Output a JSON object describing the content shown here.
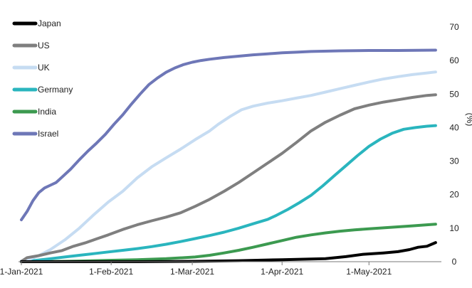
{
  "chart_data": {
    "type": "line",
    "title": "",
    "xlabel": "",
    "ylabel": "(%)",
    "ylim": [
      0,
      70
    ],
    "y_axis_side": "right",
    "y_ticks": [
      0,
      10,
      20,
      30,
      40,
      50,
      60,
      70
    ],
    "x_ticks": [
      {
        "label": "1-Jan-2021",
        "day": 0
      },
      {
        "label": "1-Feb-2021",
        "day": 31
      },
      {
        "label": "1-Mar-2021",
        "day": 59
      },
      {
        "label": "1-Apr-2021",
        "day": 90
      },
      {
        "label": "1-May-2021",
        "day": 120
      }
    ],
    "x_range_days": [
      0,
      145
    ],
    "legend_position": "top-left",
    "grid": false,
    "series": [
      {
        "name": "Japan",
        "color": "#000000",
        "points": [
          [
            0,
            0
          ],
          [
            20,
            0
          ],
          [
            40,
            0
          ],
          [
            60,
            0.1
          ],
          [
            75,
            0.3
          ],
          [
            90,
            0.6
          ],
          [
            105,
            0.9
          ],
          [
            112,
            1.5
          ],
          [
            118,
            2.2
          ],
          [
            125,
            2.6
          ],
          [
            130,
            3.0
          ],
          [
            134,
            3.6
          ],
          [
            137,
            4.3
          ],
          [
            140,
            4.6
          ],
          [
            143,
            5.7
          ]
        ]
      },
      {
        "name": "US",
        "color": "#7f7f7f",
        "points": [
          [
            0,
            0.1
          ],
          [
            2,
            1.2
          ],
          [
            6,
            1.8
          ],
          [
            10,
            2.6
          ],
          [
            14,
            3.3
          ],
          [
            18,
            4.6
          ],
          [
            22,
            5.6
          ],
          [
            26,
            6.8
          ],
          [
            30,
            8.0
          ],
          [
            35,
            9.6
          ],
          [
            40,
            11.0
          ],
          [
            45,
            12.2
          ],
          [
            50,
            13.3
          ],
          [
            55,
            14.6
          ],
          [
            60,
            16.5
          ],
          [
            65,
            18.6
          ],
          [
            70,
            21.0
          ],
          [
            75,
            23.6
          ],
          [
            80,
            26.5
          ],
          [
            85,
            29.4
          ],
          [
            90,
            32.3
          ],
          [
            95,
            35.6
          ],
          [
            100,
            39.0
          ],
          [
            105,
            41.6
          ],
          [
            110,
            43.7
          ],
          [
            115,
            45.6
          ],
          [
            120,
            46.7
          ],
          [
            125,
            47.6
          ],
          [
            130,
            48.3
          ],
          [
            135,
            49.0
          ],
          [
            140,
            49.6
          ],
          [
            143,
            49.8
          ]
        ]
      },
      {
        "name": "UK",
        "color": "#c6dcf2",
        "points": [
          [
            0,
            0.2
          ],
          [
            3,
            0.8
          ],
          [
            6,
            1.8
          ],
          [
            10,
            3.6
          ],
          [
            15,
            6.5
          ],
          [
            20,
            10.0
          ],
          [
            25,
            14.0
          ],
          [
            30,
            17.8
          ],
          [
            35,
            21.0
          ],
          [
            40,
            25.0
          ],
          [
            45,
            28.3
          ],
          [
            50,
            31.0
          ],
          [
            55,
            33.6
          ],
          [
            60,
            36.4
          ],
          [
            65,
            39.0
          ],
          [
            68,
            41.0
          ],
          [
            72,
            43.3
          ],
          [
            76,
            45.3
          ],
          [
            80,
            46.4
          ],
          [
            85,
            47.3
          ],
          [
            90,
            48.0
          ],
          [
            95,
            48.8
          ],
          [
            100,
            49.6
          ],
          [
            105,
            50.6
          ],
          [
            110,
            51.6
          ],
          [
            115,
            52.6
          ],
          [
            120,
            53.6
          ],
          [
            125,
            54.5
          ],
          [
            130,
            55.2
          ],
          [
            135,
            55.8
          ],
          [
            140,
            56.3
          ],
          [
            143,
            56.6
          ]
        ]
      },
      {
        "name": "Germany",
        "color": "#2ab5be",
        "points": [
          [
            0,
            0.1
          ],
          [
            5,
            0.4
          ],
          [
            10,
            0.9
          ],
          [
            15,
            1.4
          ],
          [
            20,
            1.9
          ],
          [
            25,
            2.4
          ],
          [
            30,
            2.9
          ],
          [
            35,
            3.4
          ],
          [
            40,
            3.9
          ],
          [
            45,
            4.5
          ],
          [
            50,
            5.2
          ],
          [
            55,
            6.0
          ],
          [
            60,
            6.9
          ],
          [
            65,
            7.8
          ],
          [
            70,
            8.8
          ],
          [
            75,
            10.0
          ],
          [
            80,
            11.3
          ],
          [
            85,
            12.6
          ],
          [
            88,
            13.8
          ],
          [
            92,
            15.6
          ],
          [
            96,
            17.6
          ],
          [
            100,
            19.8
          ],
          [
            104,
            22.6
          ],
          [
            108,
            25.6
          ],
          [
            112,
            28.6
          ],
          [
            116,
            31.6
          ],
          [
            120,
            34.4
          ],
          [
            124,
            36.6
          ],
          [
            128,
            38.3
          ],
          [
            132,
            39.5
          ],
          [
            136,
            40.0
          ],
          [
            140,
            40.4
          ],
          [
            143,
            40.6
          ]
        ]
      },
      {
        "name": "India",
        "color": "#3c9a50",
        "points": [
          [
            0,
            0
          ],
          [
            15,
            0.1
          ],
          [
            20,
            0.2
          ],
          [
            30,
            0.4
          ],
          [
            40,
            0.6
          ],
          [
            50,
            0.9
          ],
          [
            60,
            1.4
          ],
          [
            65,
            1.9
          ],
          [
            70,
            2.6
          ],
          [
            75,
            3.4
          ],
          [
            80,
            4.3
          ],
          [
            85,
            5.3
          ],
          [
            90,
            6.3
          ],
          [
            95,
            7.3
          ],
          [
            100,
            8.0
          ],
          [
            105,
            8.6
          ],
          [
            110,
            9.1
          ],
          [
            115,
            9.5
          ],
          [
            120,
            9.8
          ],
          [
            125,
            10.1
          ],
          [
            130,
            10.4
          ],
          [
            135,
            10.7
          ],
          [
            140,
            11.0
          ],
          [
            143,
            11.2
          ]
        ]
      },
      {
        "name": "Israel",
        "color": "#6e77b7",
        "points": [
          [
            0,
            12.5
          ],
          [
            2,
            15.0
          ],
          [
            4,
            18.2
          ],
          [
            6,
            20.6
          ],
          [
            8,
            22.0
          ],
          [
            10,
            22.8
          ],
          [
            12,
            23.6
          ],
          [
            14,
            25.2
          ],
          [
            17,
            27.6
          ],
          [
            20,
            30.4
          ],
          [
            23,
            33.0
          ],
          [
            26,
            35.4
          ],
          [
            29,
            38.0
          ],
          [
            32,
            41.0
          ],
          [
            35,
            43.8
          ],
          [
            38,
            47.0
          ],
          [
            41,
            50.0
          ],
          [
            44,
            52.8
          ],
          [
            47,
            54.8
          ],
          [
            50,
            56.5
          ],
          [
            53,
            57.8
          ],
          [
            56,
            58.8
          ],
          [
            59,
            59.5
          ],
          [
            62,
            60.0
          ],
          [
            65,
            60.4
          ],
          [
            70,
            60.9
          ],
          [
            75,
            61.3
          ],
          [
            80,
            61.7
          ],
          [
            85,
            62.0
          ],
          [
            90,
            62.3
          ],
          [
            95,
            62.5
          ],
          [
            100,
            62.7
          ],
          [
            110,
            62.9
          ],
          [
            120,
            63.0
          ],
          [
            130,
            63.0
          ],
          [
            143,
            63.1
          ]
        ]
      }
    ]
  }
}
